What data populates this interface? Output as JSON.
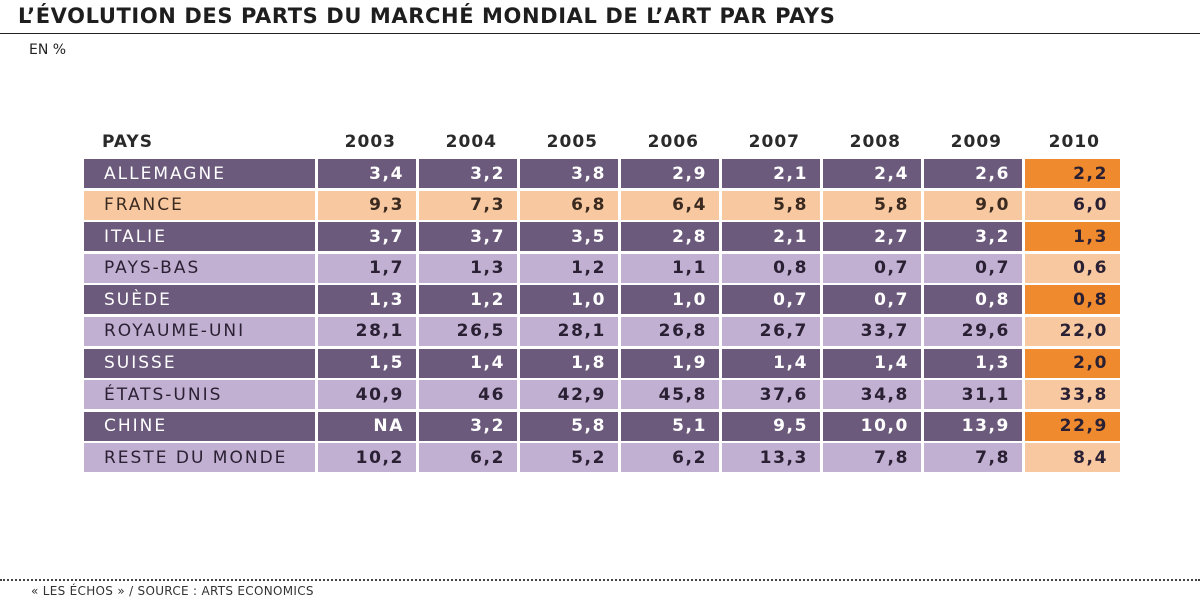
{
  "title": "L’ÉVOLUTION DES PARTS DU MARCHÉ MONDIAL DE L’ART PAR PAYS",
  "subtitle": "EN %",
  "source": "« LES ÉCHOS » / SOURCE : ARTS ECONOMICS",
  "colors": {
    "dark_row": "#6b5a7b",
    "dark_text": "#ffffff",
    "light_row": "#c2b0d2",
    "light_text": "#2a2033",
    "france_row": "#f8c9a1",
    "france_text": "#3a2a20",
    "accent_2010_dark": "#f08a2e",
    "accent_2010_light": "#f8c9a1"
  },
  "chart_data": {
    "type": "table",
    "title": "L’ÉVOLUTION DES PARTS DU MARCHÉ MONDIAL DE L’ART PAR PAYS",
    "unit": "EN %",
    "header_label": "PAYS",
    "columns": [
      "2003",
      "2004",
      "2005",
      "2006",
      "2007",
      "2008",
      "2009",
      "2010"
    ],
    "rows": [
      {
        "name": "ALLEMAGNE",
        "style": "dark",
        "values": [
          "3,4",
          "3,2",
          "3,8",
          "2,9",
          "2,1",
          "2,4",
          "2,6",
          "2,2"
        ]
      },
      {
        "name": "FRANCE",
        "style": "france",
        "values": [
          "9,3",
          "7,3",
          "6,8",
          "6,4",
          "5,8",
          "5,8",
          "9,0",
          "6,0"
        ]
      },
      {
        "name": "ITALIE",
        "style": "dark",
        "values": [
          "3,7",
          "3,7",
          "3,5",
          "2,8",
          "2,1",
          "2,7",
          "3,2",
          "1,3"
        ]
      },
      {
        "name": "PAYS-BAS",
        "style": "light",
        "values": [
          "1,7",
          "1,3",
          "1,2",
          "1,1",
          "0,8",
          "0,7",
          "0,7",
          "0,6"
        ]
      },
      {
        "name": "SUÈDE",
        "style": "dark",
        "values": [
          "1,3",
          "1,2",
          "1,0",
          "1,0",
          "0,7",
          "0,7",
          "0,8",
          "0,8"
        ]
      },
      {
        "name": "ROYAUME-UNI",
        "style": "light",
        "values": [
          "28,1",
          "26,5",
          "28,1",
          "26,8",
          "26,7",
          "33,7",
          "29,6",
          "22,0"
        ]
      },
      {
        "name": "SUISSE",
        "style": "dark",
        "values": [
          "1,5",
          "1,4",
          "1,8",
          "1,9",
          "1,4",
          "1,4",
          "1,3",
          "2,0"
        ]
      },
      {
        "name": "ÉTATS-UNIS",
        "style": "light",
        "values": [
          "40,9",
          "46",
          "42,9",
          "45,8",
          "37,6",
          "34,8",
          "31,1",
          "33,8"
        ]
      },
      {
        "name": "CHINE",
        "style": "dark",
        "values": [
          "NA",
          "3,2",
          "5,8",
          "5,1",
          "9,5",
          "10,0",
          "13,9",
          "22,9"
        ]
      },
      {
        "name": "RESTE DU MONDE",
        "style": "light",
        "values": [
          "10,2",
          "6,2",
          "5,2",
          "6,2",
          "13,3",
          "7,8",
          "7,8",
          "8,4"
        ]
      }
    ]
  }
}
